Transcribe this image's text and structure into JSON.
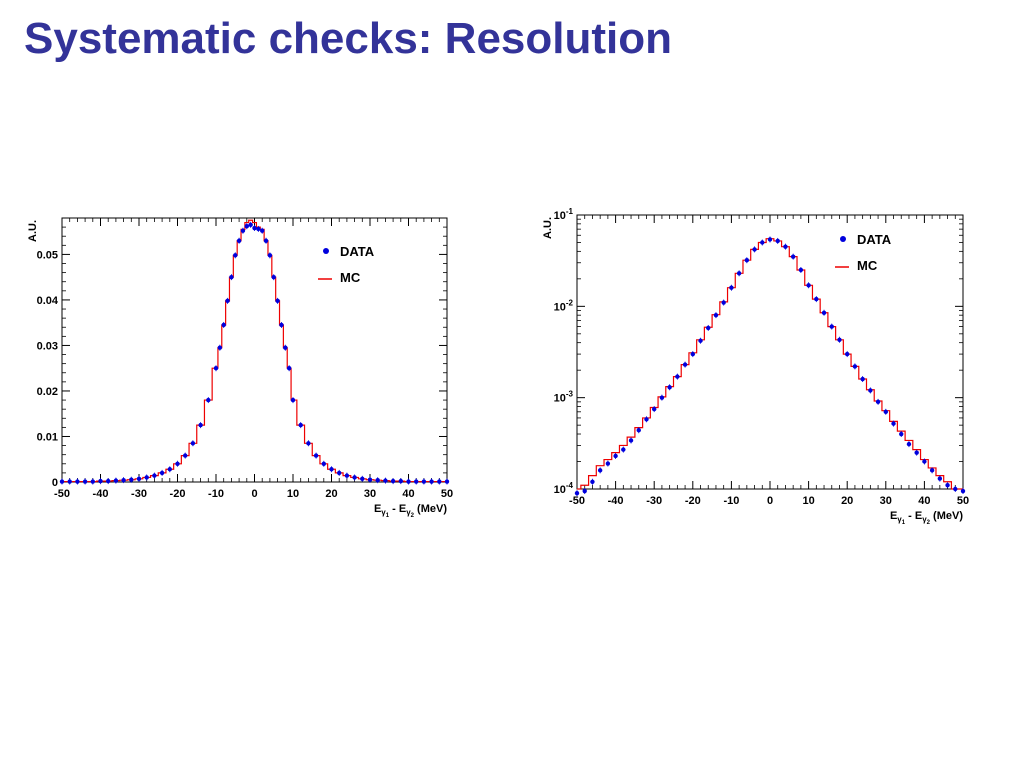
{
  "slide": {
    "title": "Systematic checks: Resolution"
  },
  "colors": {
    "title": "#333399",
    "data": "#0000dd",
    "mc": "#ee0000",
    "axis": "#000000"
  },
  "chart_data": [
    {
      "type": "line",
      "ylabel": "A.U.",
      "xlabel_parts": {
        "main": "E",
        "sub1": "γ",
        "subsub1": "1",
        "mid": " - E",
        "sub2": "γ",
        "subsub2": "2",
        "tail": " (MeV)"
      },
      "xlim": [
        -50,
        50
      ],
      "ylim": [
        0,
        0.058
      ],
      "log_y": false,
      "grid": false,
      "legend_position": "top-right",
      "x_ticks": [
        -50,
        -40,
        -30,
        -20,
        -10,
        0,
        10,
        20,
        30,
        40,
        50
      ],
      "y_ticks": [
        {
          "value": 0,
          "label": "0"
        },
        {
          "value": 0.01,
          "label": "0.01"
        },
        {
          "value": 0.02,
          "label": "0.02"
        },
        {
          "value": 0.03,
          "label": "0.03"
        },
        {
          "value": 0.04,
          "label": "0.04"
        },
        {
          "value": 0.05,
          "label": "0.05"
        }
      ],
      "series": [
        {
          "name": "DATA",
          "style": "points",
          "x": [
            -50,
            -48,
            -46,
            -44,
            -42,
            -40,
            -38,
            -36,
            -34,
            -32,
            -30,
            -28,
            -26,
            -24,
            -22,
            -20,
            -18,
            -16,
            -14,
            -12,
            -10,
            -9,
            -8,
            -7,
            -6,
            -5,
            -4,
            -3,
            -2,
            -1,
            0,
            1,
            2,
            3,
            4,
            5,
            6,
            7,
            8,
            9,
            10,
            12,
            14,
            16,
            18,
            20,
            22,
            24,
            26,
            28,
            30,
            32,
            34,
            36,
            38,
            40,
            42,
            44,
            46,
            48,
            50
          ],
          "y": [
            0.0001,
            0.0001,
            0.0001,
            0.0001,
            0.0001,
            0.0002,
            0.0002,
            0.0003,
            0.0004,
            0.0005,
            0.0007,
            0.001,
            0.0014,
            0.002,
            0.0028,
            0.004,
            0.0058,
            0.0085,
            0.0125,
            0.018,
            0.025,
            0.0295,
            0.0345,
            0.0398,
            0.045,
            0.0498,
            0.053,
            0.0552,
            0.0562,
            0.0565,
            0.0558,
            0.0556,
            0.0552,
            0.053,
            0.0498,
            0.045,
            0.0398,
            0.0345,
            0.0295,
            0.025,
            0.018,
            0.0125,
            0.0085,
            0.0058,
            0.004,
            0.0028,
            0.002,
            0.0014,
            0.001,
            0.0007,
            0.0005,
            0.0004,
            0.0003,
            0.0002,
            0.0002,
            0.0001,
            0.0001,
            0.0001,
            0.0001,
            0.0001,
            0.0001
          ]
        },
        {
          "name": "MC",
          "style": "step",
          "x": [
            -50,
            -48,
            -46,
            -44,
            -42,
            -40,
            -38,
            -36,
            -34,
            -32,
            -30,
            -28,
            -26,
            -24,
            -22,
            -20,
            -18,
            -16,
            -14,
            -12,
            -10,
            -9,
            -8,
            -7,
            -6,
            -5,
            -4,
            -3,
            -2,
            -1,
            0,
            1,
            2,
            3,
            4,
            5,
            6,
            7,
            8,
            9,
            10,
            12,
            14,
            16,
            18,
            20,
            22,
            24,
            26,
            28,
            30,
            32,
            34,
            36,
            38,
            40,
            42,
            44,
            46,
            48,
            50
          ],
          "y": [
            0.0001,
            0.0001,
            0.0001,
            0.0001,
            0.0001,
            0.0002,
            0.0002,
            0.0003,
            0.0004,
            0.0005,
            0.0007,
            0.001,
            0.0014,
            0.002,
            0.0028,
            0.004,
            0.0058,
            0.0085,
            0.0125,
            0.018,
            0.025,
            0.0295,
            0.0345,
            0.0398,
            0.045,
            0.0498,
            0.053,
            0.0555,
            0.057,
            0.0575,
            0.057,
            0.056,
            0.0555,
            0.053,
            0.0498,
            0.045,
            0.0398,
            0.0345,
            0.0295,
            0.025,
            0.018,
            0.0125,
            0.0085,
            0.0058,
            0.004,
            0.0028,
            0.002,
            0.0014,
            0.001,
            0.0007,
            0.0005,
            0.0004,
            0.0003,
            0.0002,
            0.0002,
            0.0001,
            0.0001,
            0.0001,
            0.0001,
            0.0001,
            0.0001
          ]
        }
      ]
    },
    {
      "type": "line",
      "ylabel": "A.U.",
      "xlabel_parts": {
        "main": "E",
        "sub1": "γ",
        "subsub1": "1",
        "mid": " - E",
        "sub2": "γ",
        "subsub2": "2",
        "tail": " (MeV)"
      },
      "xlim": [
        -50,
        50
      ],
      "ylim": [
        0.0001,
        0.1
      ],
      "log_y": true,
      "grid": false,
      "legend_position": "top-right",
      "x_ticks": [
        -50,
        -40,
        -30,
        -20,
        -10,
        0,
        10,
        20,
        30,
        40,
        50
      ],
      "y_ticks": [
        {
          "value": 0.0001,
          "base": "10",
          "exp": "-4"
        },
        {
          "value": 0.001,
          "base": "10",
          "exp": "-3"
        },
        {
          "value": 0.01,
          "base": "10",
          "exp": "-2"
        },
        {
          "value": 0.1,
          "base": "10",
          "exp": "-1"
        }
      ],
      "series": [
        {
          "name": "DATA",
          "style": "points",
          "x": [
            -50,
            -48,
            -46,
            -44,
            -42,
            -40,
            -38,
            -36,
            -34,
            -32,
            -30,
            -28,
            -26,
            -24,
            -22,
            -20,
            -18,
            -16,
            -14,
            -12,
            -10,
            -8,
            -6,
            -4,
            -2,
            0,
            2,
            4,
            6,
            8,
            10,
            12,
            14,
            16,
            18,
            20,
            22,
            24,
            26,
            28,
            30,
            32,
            34,
            36,
            38,
            40,
            42,
            44,
            46,
            48,
            50
          ],
          "y": [
            9e-05,
            9.5e-05,
            0.00012,
            0.00016,
            0.00019,
            0.00023,
            0.00027,
            0.00034,
            0.00044,
            0.00058,
            0.00075,
            0.001,
            0.0013,
            0.0017,
            0.0023,
            0.003,
            0.0042,
            0.0058,
            0.008,
            0.011,
            0.016,
            0.023,
            0.032,
            0.042,
            0.05,
            0.054,
            0.052,
            0.045,
            0.035,
            0.025,
            0.017,
            0.012,
            0.0085,
            0.006,
            0.0043,
            0.003,
            0.0022,
            0.0016,
            0.0012,
            0.0009,
            0.0007,
            0.00052,
            0.0004,
            0.00031,
            0.00025,
            0.0002,
            0.00016,
            0.00013,
            0.00011,
            0.0001,
            9.5e-05
          ]
        },
        {
          "name": "MC",
          "style": "step",
          "x": [
            -50,
            -48,
            -46,
            -44,
            -42,
            -40,
            -38,
            -36,
            -34,
            -32,
            -30,
            -28,
            -26,
            -24,
            -22,
            -20,
            -18,
            -16,
            -14,
            -12,
            -10,
            -8,
            -6,
            -4,
            -2,
            0,
            2,
            4,
            6,
            8,
            10,
            12,
            14,
            16,
            18,
            20,
            22,
            24,
            26,
            28,
            30,
            32,
            34,
            36,
            38,
            40,
            42,
            44,
            46,
            48,
            50
          ],
          "y": [
            0.0001,
            0.00011,
            0.00014,
            0.00018,
            0.00021,
            0.00025,
            0.0003,
            0.00037,
            0.00047,
            0.0006,
            0.00078,
            0.00102,
            0.00132,
            0.0017,
            0.0023,
            0.0031,
            0.0043,
            0.0059,
            0.0081,
            0.0112,
            0.016,
            0.023,
            0.032,
            0.042,
            0.05,
            0.055,
            0.052,
            0.045,
            0.035,
            0.025,
            0.017,
            0.012,
            0.0085,
            0.006,
            0.0043,
            0.003,
            0.0022,
            0.0016,
            0.00122,
            0.00092,
            0.00072,
            0.00055,
            0.00043,
            0.00034,
            0.00027,
            0.00021,
            0.00017,
            0.00014,
            0.00012,
            0.0001,
            0.0001
          ]
        }
      ]
    }
  ]
}
